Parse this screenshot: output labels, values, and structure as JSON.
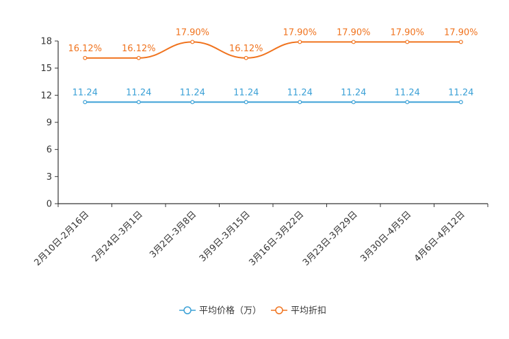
{
  "chart_data": {
    "type": "line",
    "categories": [
      "2月10日-2月16日",
      "2月24日-3月1日",
      "3月2日-3月8日",
      "3月9日-3月15日",
      "3月16日-3月22日",
      "3月23日-3月29日",
      "3月30日-4月5日",
      "4月6日-4月12日"
    ],
    "ylim": [
      0,
      18
    ],
    "yticks": [
      0,
      3,
      6,
      9,
      12,
      15,
      18
    ],
    "series": [
      {
        "name": "平均价格（万）",
        "color": "#3aa0d6",
        "values": [
          11.24,
          11.24,
          11.24,
          11.24,
          11.24,
          11.24,
          11.24,
          11.24
        ],
        "labels": [
          "11.24",
          "11.24",
          "11.24",
          "11.24",
          "11.24",
          "11.24",
          "11.24",
          "11.24"
        ]
      },
      {
        "name": "平均折扣",
        "color": "#f0731e",
        "values": [
          16.12,
          16.12,
          17.9,
          16.12,
          17.9,
          17.9,
          17.9,
          17.9
        ],
        "labels": [
          "16.12%",
          "16.12%",
          "17.90%",
          "16.12%",
          "17.90%",
          "17.90%",
          "17.90%",
          "17.90%"
        ]
      }
    ],
    "legend_position": "bottom-center"
  }
}
